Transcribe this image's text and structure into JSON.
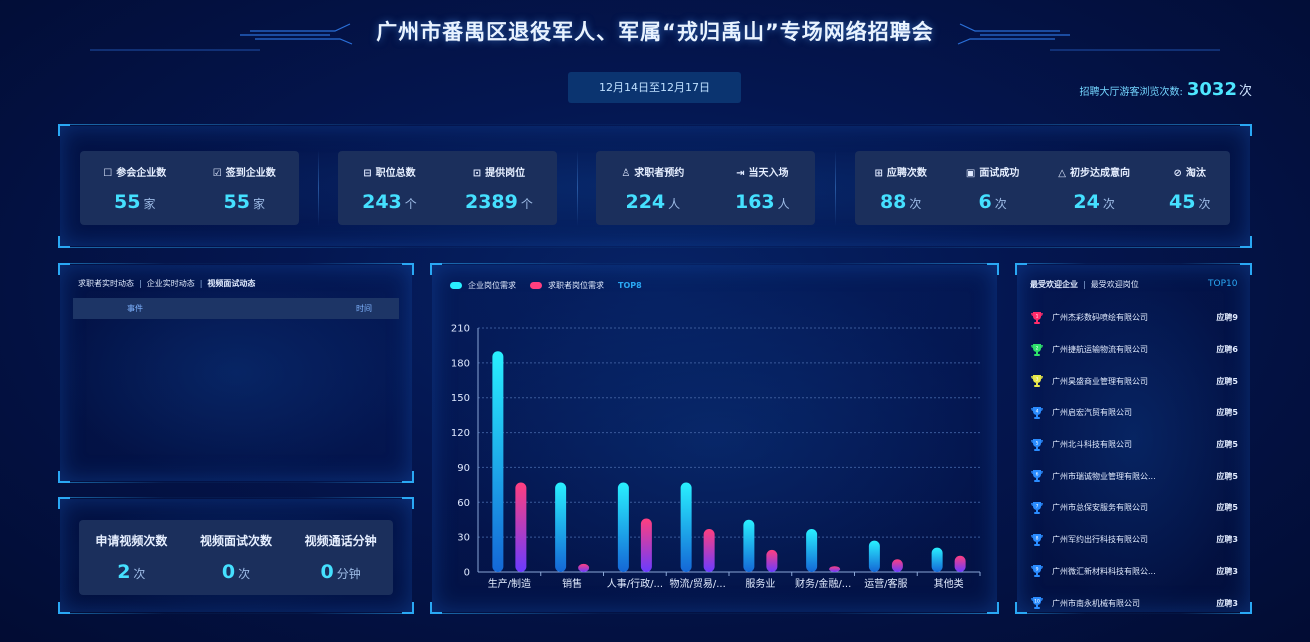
{
  "header": {
    "title": "广州市番禺区退役军人、军属“戎归禹山”专场网络招聘会",
    "date_range": "12月14日至12月17日",
    "visits_label": "招聘大厅游客浏览次数:",
    "visits_value": "3032",
    "visits_unit": "次"
  },
  "stats": {
    "group1": [
      {
        "icon": "edit-icon",
        "label": "参会企业数",
        "value": "55",
        "unit": "家"
      },
      {
        "icon": "checkin-icon",
        "label": "签到企业数",
        "value": "55",
        "unit": "家"
      }
    ],
    "group2": [
      {
        "icon": "briefcase-icon",
        "label": "职位总数",
        "value": "243",
        "unit": "个"
      },
      {
        "icon": "document-icon",
        "label": "提供岗位",
        "value": "2389",
        "unit": "个"
      }
    ],
    "group3": [
      {
        "icon": "user-icon",
        "label": "求职者预约",
        "value": "224",
        "unit": "人"
      },
      {
        "icon": "enter-icon",
        "label": "当天入场",
        "value": "163",
        "unit": "人"
      }
    ],
    "group4": [
      {
        "icon": "grid-icon",
        "label": "应聘次数",
        "value": "88",
        "unit": "次"
      },
      {
        "icon": "doc-check-icon",
        "label": "面试成功",
        "value": "6",
        "unit": "次"
      },
      {
        "icon": "handshake-icon",
        "label": "初步达成意向",
        "value": "24",
        "unit": "次"
      },
      {
        "icon": "ban-icon",
        "label": "淘汰",
        "value": "45",
        "unit": "次"
      }
    ]
  },
  "activity": {
    "tabs": [
      "求职者实时动态",
      "企业实时动态",
      "视频面试动态"
    ],
    "active_tab": 2,
    "columns": [
      "事件",
      "时间"
    ]
  },
  "video": {
    "items": [
      {
        "label": "申请视频次数",
        "value": "2",
        "unit": "次"
      },
      {
        "label": "视频面试次数",
        "value": "0",
        "unit": "次"
      },
      {
        "label": "视频通话分钟",
        "value": "0",
        "unit": "分钟"
      }
    ]
  },
  "chart_data": {
    "type": "bar",
    "legend": [
      "企业岗位需求",
      "求职者岗位需求"
    ],
    "legend_suffix": "TOP8",
    "categories": [
      "生产/制造",
      "销售",
      "人事/行政/...",
      "物流/贸易/...",
      "服务业",
      "财务/金融/...",
      "运营/客服",
      "其他类"
    ],
    "series": [
      {
        "name": "企业岗位需求",
        "values": [
          190,
          77,
          77,
          77,
          45,
          37,
          27,
          21
        ],
        "color_top": "#29f0ff",
        "color_bottom": "#1467d6"
      },
      {
        "name": "求职者岗位需求",
        "values": [
          77,
          7,
          46,
          37,
          19,
          5,
          11,
          14
        ],
        "color_top": "#ff3f7f",
        "color_bottom": "#6a3bff"
      }
    ],
    "yticks": [
      0,
      30,
      60,
      90,
      120,
      150,
      180,
      210
    ],
    "ylim": [
      0,
      210
    ],
    "grid": true
  },
  "ranking": {
    "tabs": [
      "最受欢迎企业",
      "最受欢迎岗位"
    ],
    "active_tab": 0,
    "top_label": "TOP10",
    "items": [
      {
        "rank": "1",
        "name": "广州杰彩数码喷绘有限公司",
        "count": "应聘9",
        "color": "#ff2d6b"
      },
      {
        "rank": "2",
        "name": "广州捷航运输物流有限公司",
        "count": "应聘6",
        "color": "#2ee06b"
      },
      {
        "rank": "3",
        "name": "广州昊盛商业管理有限公司",
        "count": "应聘5",
        "color": "#e8e84a"
      },
      {
        "rank": "4",
        "name": "广州启宏汽贸有限公司",
        "count": "应聘5",
        "color": "#2a8cff"
      },
      {
        "rank": "5",
        "name": "广州北斗科技有限公司",
        "count": "应聘5",
        "color": "#2a8cff"
      },
      {
        "rank": "6",
        "name": "广州市瑞诚物业管理有限公...",
        "count": "应聘5",
        "color": "#2a8cff"
      },
      {
        "rank": "7",
        "name": "广州市总保安服务有限公司",
        "count": "应聘5",
        "color": "#2a8cff"
      },
      {
        "rank": "8",
        "name": "广州军约出行科技有限公司",
        "count": "应聘3",
        "color": "#2a8cff"
      },
      {
        "rank": "9",
        "name": "广州微汇新材料科技有限公...",
        "count": "应聘3",
        "color": "#2a8cff"
      },
      {
        "rank": "10",
        "name": "广州市南永机械有限公司",
        "count": "应聘3",
        "color": "#2a8cff"
      }
    ]
  }
}
